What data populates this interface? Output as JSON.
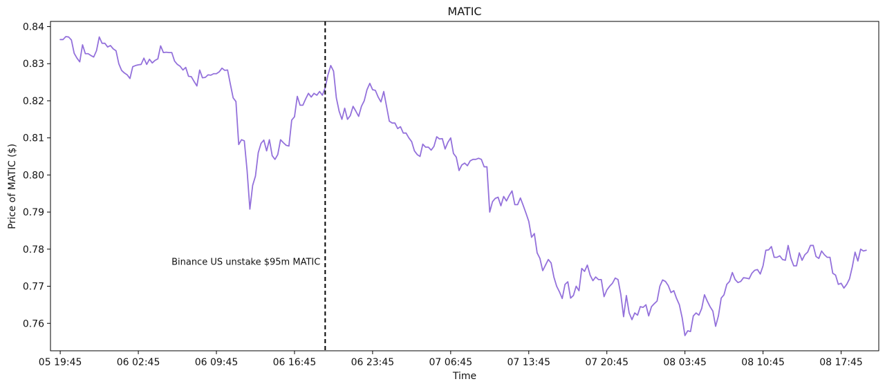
{
  "chart_data": {
    "type": "line",
    "title": "MATIC",
    "xlabel": "Time",
    "ylabel": "Price of MATIC ($)",
    "x_tick_labels": [
      "05 19:45",
      "06 02:45",
      "06 09:45",
      "06 16:45",
      "06 23:45",
      "07 06:45",
      "07 13:45",
      "07 20:45",
      "08 03:45",
      "08 10:45",
      "08 17:45"
    ],
    "y_tick_labels": [
      "0.84",
      "0.83",
      "0.82",
      "0.81",
      "0.80",
      "0.79",
      "0.78",
      "0.77",
      "0.76"
    ],
    "y_ticks": [
      0.84,
      0.83,
      0.82,
      0.81,
      0.8,
      0.79,
      0.78,
      0.77,
      0.76
    ],
    "ylim": [
      0.7526,
      0.8414
    ],
    "x_start": "05 19:45",
    "x_interval_minutes": 15,
    "x_tick_step": 28,
    "xlim": [
      -3.5,
      293.5
    ],
    "line_color": "#9370DB",
    "annotation": {
      "text": "Binance US unstake $95m MATIC",
      "x_index": 95
    },
    "series": [
      {
        "values": [
          0.8365,
          0.8365,
          0.8373,
          0.8372,
          0.8364,
          0.8328,
          0.8315,
          0.8305,
          0.8351,
          0.8327,
          0.8327,
          0.8322,
          0.8318,
          0.8335,
          0.8372,
          0.8355,
          0.8355,
          0.8345,
          0.8349,
          0.834,
          0.8335,
          0.83,
          0.8282,
          0.8275,
          0.827,
          0.826,
          0.8292,
          0.8295,
          0.8297,
          0.8298,
          0.8315,
          0.8298,
          0.8312,
          0.8302,
          0.8309,
          0.8313,
          0.8348,
          0.833,
          0.8331,
          0.833,
          0.833,
          0.8307,
          0.8298,
          0.8293,
          0.8283,
          0.829,
          0.8266,
          0.8265,
          0.8252,
          0.824,
          0.8283,
          0.8262,
          0.8263,
          0.827,
          0.8269,
          0.8273,
          0.8273,
          0.8278,
          0.8288,
          0.8282,
          0.8283,
          0.8245,
          0.8208,
          0.8198,
          0.8082,
          0.8095,
          0.8092,
          0.8012,
          0.7908,
          0.7972,
          0.7997,
          0.806,
          0.8085,
          0.8094,
          0.8065,
          0.8095,
          0.8052,
          0.8042,
          0.8055,
          0.8095,
          0.8087,
          0.808,
          0.8078,
          0.8148,
          0.8157,
          0.8212,
          0.8188,
          0.8188,
          0.8205,
          0.822,
          0.821,
          0.822,
          0.8215,
          0.8225,
          0.8215,
          0.8235,
          0.827,
          0.8295,
          0.828,
          0.8208,
          0.8172,
          0.815,
          0.818,
          0.815,
          0.816,
          0.8185,
          0.8172,
          0.8158,
          0.8185,
          0.82,
          0.823,
          0.8247,
          0.823,
          0.8228,
          0.821,
          0.8197,
          0.8225,
          0.8185,
          0.8145,
          0.814,
          0.814,
          0.8125,
          0.813,
          0.8113,
          0.8113,
          0.81,
          0.809,
          0.8065,
          0.8055,
          0.805,
          0.8083,
          0.8075,
          0.8075,
          0.8067,
          0.8077,
          0.8103,
          0.8097,
          0.8098,
          0.807,
          0.8088,
          0.81,
          0.8058,
          0.8048,
          0.8012,
          0.8027,
          0.8032,
          0.8025,
          0.8038,
          0.8042,
          0.8042,
          0.8045,
          0.8042,
          0.8022,
          0.8022,
          0.79,
          0.7928,
          0.7937,
          0.794,
          0.7917,
          0.7942,
          0.793,
          0.7945,
          0.7957,
          0.792,
          0.792,
          0.7938,
          0.7918,
          0.7897,
          0.7875,
          0.7832,
          0.7842,
          0.779,
          0.7775,
          0.7742,
          0.7757,
          0.7772,
          0.7763,
          0.7725,
          0.77,
          0.7685,
          0.7667,
          0.7705,
          0.7712,
          0.7668,
          0.7675,
          0.77,
          0.7688,
          0.7748,
          0.774,
          0.7757,
          0.773,
          0.7715,
          0.7725,
          0.7718,
          0.7718,
          0.7672,
          0.769,
          0.77,
          0.7708,
          0.7722,
          0.7718,
          0.7678,
          0.7618,
          0.7675,
          0.7628,
          0.761,
          0.7628,
          0.7622,
          0.7645,
          0.7643,
          0.765,
          0.762,
          0.7645,
          0.7653,
          0.766,
          0.77,
          0.7717,
          0.7713,
          0.7702,
          0.7683,
          0.7688,
          0.7667,
          0.765,
          0.7615,
          0.7567,
          0.758,
          0.7578,
          0.762,
          0.7628,
          0.7622,
          0.764,
          0.7677,
          0.766,
          0.7645,
          0.7633,
          0.7592,
          0.762,
          0.7668,
          0.7677,
          0.7705,
          0.7713,
          0.7737,
          0.7718,
          0.771,
          0.7713,
          0.7723,
          0.7722,
          0.772,
          0.7735,
          0.7743,
          0.7745,
          0.7733,
          0.7755,
          0.7797,
          0.7798,
          0.7807,
          0.7778,
          0.7778,
          0.7782,
          0.7772,
          0.777,
          0.781,
          0.7775,
          0.7755,
          0.7755,
          0.779,
          0.777,
          0.7785,
          0.7792,
          0.781,
          0.781,
          0.778,
          0.7775,
          0.7795,
          0.7785,
          0.7778,
          0.7778,
          0.7735,
          0.773,
          0.7705,
          0.7708,
          0.7695,
          0.7705,
          0.772,
          0.7752,
          0.7792,
          0.7768,
          0.78,
          0.7795,
          0.7797
        ]
      }
    ]
  }
}
